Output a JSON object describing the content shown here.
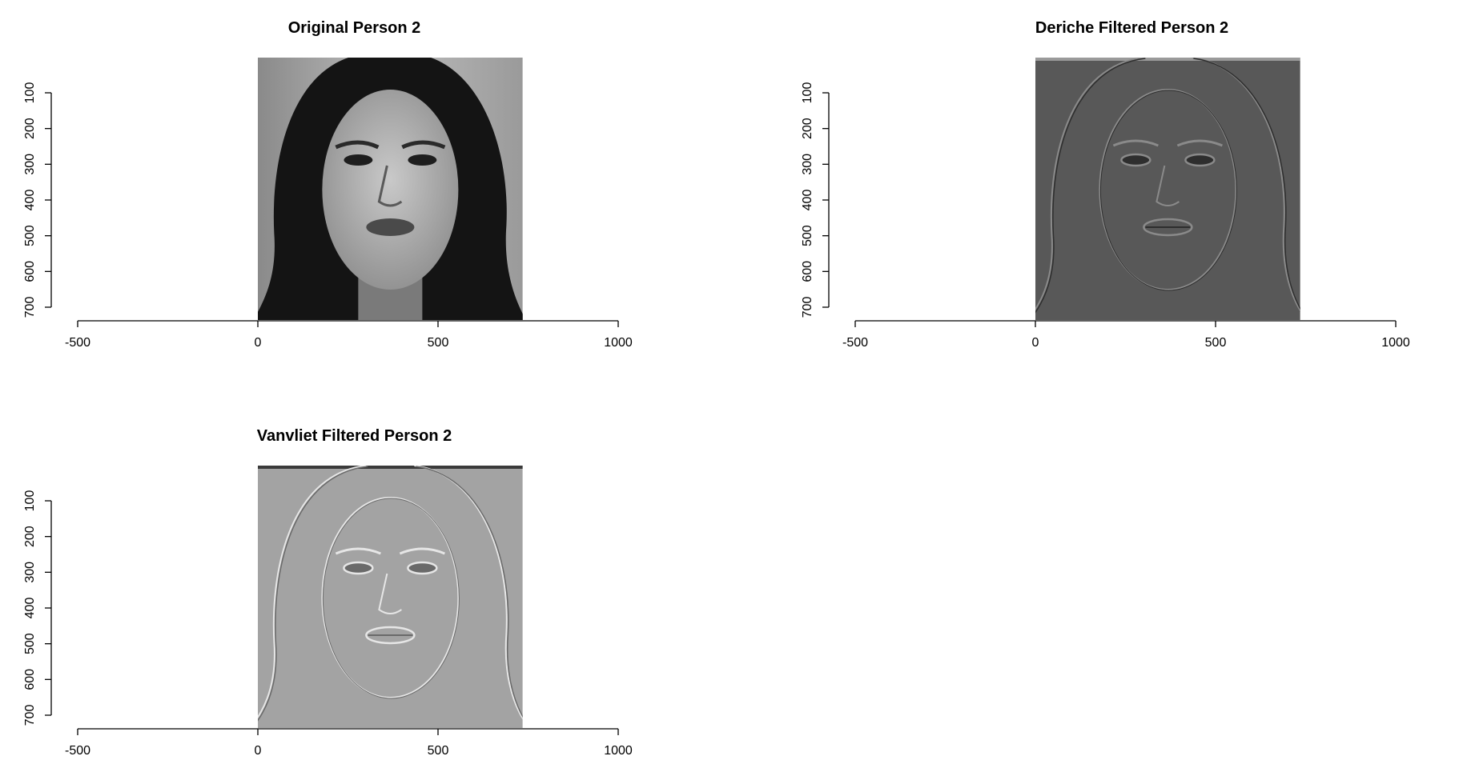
{
  "palette": {
    "background": "#ffffff",
    "axis": "#000000",
    "original_face": "#1a1a1a",
    "deriche_bg": "#585858",
    "vanvliet_bg": "#a3a3a3"
  },
  "chart_data": [
    {
      "type": "image",
      "title": "Original Person 2",
      "image_desc_icon": "grayscale-face-photo",
      "style": "original",
      "xlim": [
        -500,
        1000
      ],
      "x_ticks": [
        "-500",
        "0",
        "500",
        "1000"
      ],
      "x_tick_values": [
        -500,
        0,
        500,
        1000
      ],
      "y_ticks": [
        "100",
        "200",
        "300",
        "400",
        "500",
        "600",
        "700"
      ],
      "y_tick_values": [
        100,
        200,
        300,
        400,
        500,
        600,
        700
      ],
      "ylim": [
        0,
        735
      ],
      "image_extent": {
        "x": [
          0,
          735
        ],
        "y": [
          0,
          735
        ]
      }
    },
    {
      "type": "image",
      "title": "Deriche Filtered Person 2",
      "image_desc_icon": "edge-filtered-face-dark",
      "style": "deriche",
      "xlim": [
        -500,
        1000
      ],
      "x_ticks": [
        "-500",
        "0",
        "500",
        "1000"
      ],
      "x_tick_values": [
        -500,
        0,
        500,
        1000
      ],
      "y_ticks": [
        "100",
        "200",
        "300",
        "400",
        "500",
        "600",
        "700"
      ],
      "y_tick_values": [
        100,
        200,
        300,
        400,
        500,
        600,
        700
      ],
      "ylim": [
        0,
        735
      ],
      "image_extent": {
        "x": [
          0,
          735
        ],
        "y": [
          0,
          735
        ]
      }
    },
    {
      "type": "image",
      "title": "Vanvliet Filtered Person 2",
      "image_desc_icon": "edge-filtered-face-light",
      "style": "vanvliet",
      "xlim": [
        -500,
        1000
      ],
      "x_ticks": [
        "-500",
        "0",
        "500",
        "1000"
      ],
      "x_tick_values": [
        -500,
        0,
        500,
        1000
      ],
      "y_ticks": [
        "100",
        "200",
        "300",
        "400",
        "500",
        "600",
        "700"
      ],
      "y_tick_values": [
        100,
        200,
        300,
        400,
        500,
        600,
        700
      ],
      "ylim": [
        0,
        735
      ],
      "image_extent": {
        "x": [
          0,
          735
        ],
        "y": [
          0,
          735
        ]
      }
    }
  ]
}
